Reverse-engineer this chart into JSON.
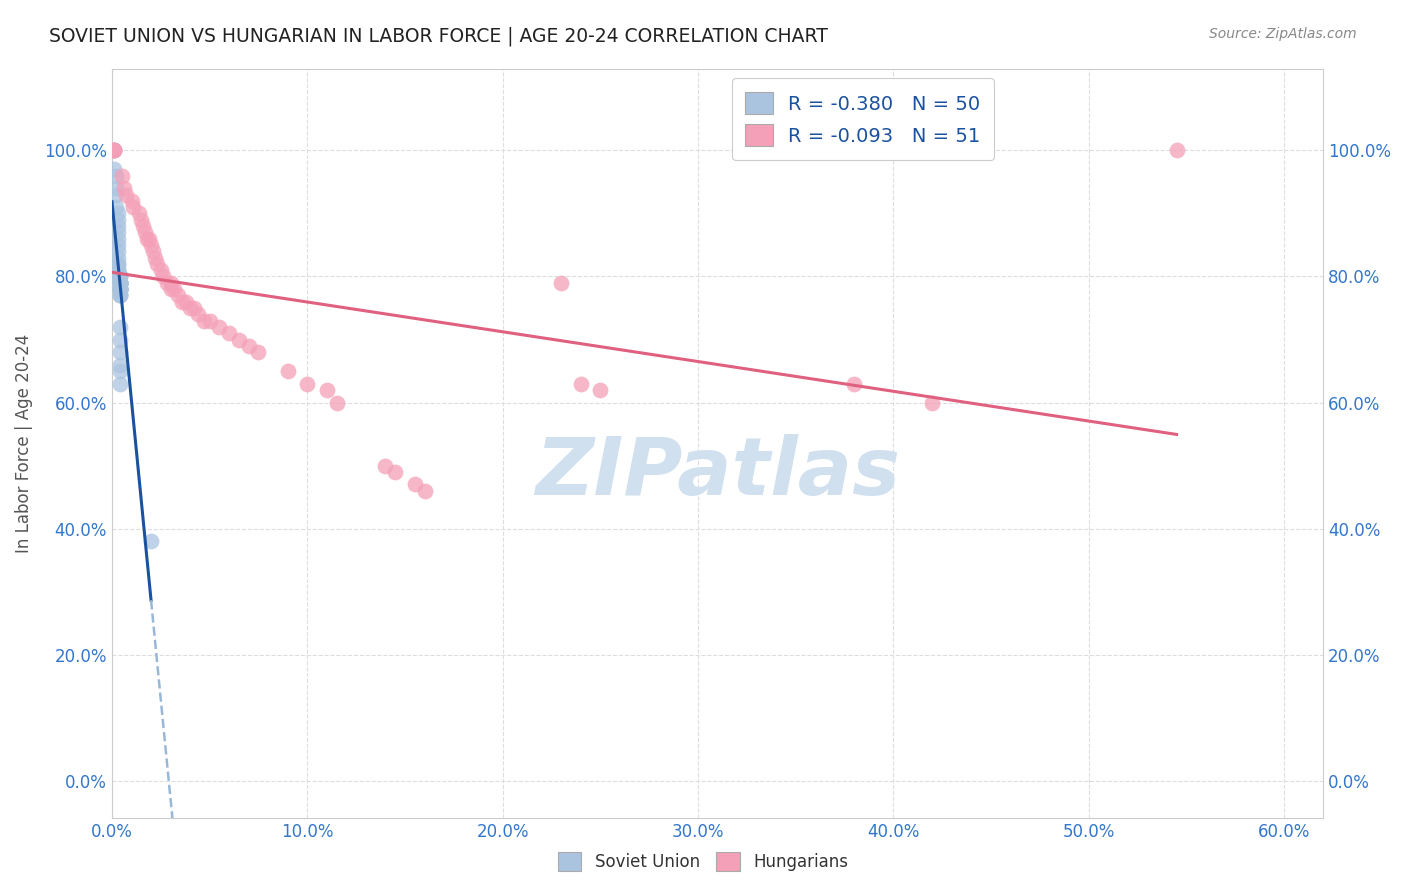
{
  "title": "SOVIET UNION VS HUNGARIAN IN LABOR FORCE | AGE 20-24 CORRELATION CHART",
  "source": "Source: ZipAtlas.com",
  "ylabel_label": "In Labor Force | Age 20-24",
  "legend_blue_label": "Soviet Union",
  "legend_pink_label": "Hungarians",
  "R_blue": -0.38,
  "N_blue": 50,
  "R_pink": -0.093,
  "N_pink": 51,
  "blue_color": "#aac4e0",
  "pink_color": "#f4a0b8",
  "blue_line_color": "#1a52a0",
  "pink_line_color": "#e06080",
  "blue_dash_color": "#99b8d8",
  "axis_label_color": "#3377cc",
  "title_color": "#222222",
  "source_color": "#888888",
  "background_color": "#ffffff",
  "grid_color": "#dddddd",
  "legend_text_color": "#1a52a0",
  "watermark_text": "ZIPatlas",
  "watermark_color": "#d0e0ee",
  "soviet_x": [
    0.001,
    0.001,
    0.002,
    0.002,
    0.002,
    0.002,
    0.003,
    0.003,
    0.003,
    0.003,
    0.003,
    0.003,
    0.003,
    0.003,
    0.003,
    0.003,
    0.003,
    0.003,
    0.003,
    0.004,
    0.004,
    0.004,
    0.004,
    0.004,
    0.004,
    0.004,
    0.004,
    0.004,
    0.004,
    0.004,
    0.004,
    0.004,
    0.004,
    0.004,
    0.004,
    0.004,
    0.004,
    0.004,
    0.004,
    0.004,
    0.004,
    0.004,
    0.004,
    0.004,
    0.004,
    0.004,
    0.004,
    0.004,
    0.004,
    0.02
  ],
  "soviet_y": [
    1.0,
    0.97,
    0.96,
    0.94,
    0.93,
    0.91,
    0.9,
    0.89,
    0.88,
    0.87,
    0.86,
    0.85,
    0.84,
    0.83,
    0.82,
    0.82,
    0.81,
    0.81,
    0.8,
    0.8,
    0.8,
    0.8,
    0.79,
    0.79,
    0.79,
    0.79,
    0.79,
    0.79,
    0.79,
    0.79,
    0.79,
    0.78,
    0.78,
    0.78,
    0.78,
    0.78,
    0.78,
    0.78,
    0.78,
    0.78,
    0.77,
    0.77,
    0.77,
    0.72,
    0.7,
    0.68,
    0.66,
    0.65,
    0.63,
    0.38
  ],
  "hungarian_x": [
    0.001,
    0.001,
    0.001,
    0.005,
    0.006,
    0.007,
    0.01,
    0.011,
    0.014,
    0.015,
    0.016,
    0.017,
    0.018,
    0.019,
    0.02,
    0.021,
    0.022,
    0.023,
    0.025,
    0.026,
    0.028,
    0.03,
    0.03,
    0.032,
    0.034,
    0.036,
    0.038,
    0.04,
    0.042,
    0.044,
    0.047,
    0.05,
    0.055,
    0.06,
    0.065,
    0.07,
    0.075,
    0.09,
    0.1,
    0.11,
    0.115,
    0.14,
    0.145,
    0.155,
    0.16,
    0.23,
    0.24,
    0.25,
    0.38,
    0.42,
    0.545
  ],
  "hungarian_y": [
    1.0,
    1.0,
    1.0,
    0.96,
    0.94,
    0.93,
    0.92,
    0.91,
    0.9,
    0.89,
    0.88,
    0.87,
    0.86,
    0.86,
    0.85,
    0.84,
    0.83,
    0.82,
    0.81,
    0.8,
    0.79,
    0.79,
    0.78,
    0.78,
    0.77,
    0.76,
    0.76,
    0.75,
    0.75,
    0.74,
    0.73,
    0.73,
    0.72,
    0.71,
    0.7,
    0.69,
    0.68,
    0.65,
    0.63,
    0.62,
    0.6,
    0.5,
    0.49,
    0.47,
    0.46,
    0.79,
    0.63,
    0.62,
    0.63,
    0.6,
    1.0
  ],
  "xlim": [
    0.0,
    0.62
  ],
  "ylim": [
    -0.06,
    1.13
  ],
  "xtick_vals": [
    0.0,
    0.1,
    0.2,
    0.3,
    0.4,
    0.5,
    0.6
  ],
  "ytick_vals": [
    0.0,
    0.2,
    0.4,
    0.6,
    0.8,
    1.0
  ]
}
